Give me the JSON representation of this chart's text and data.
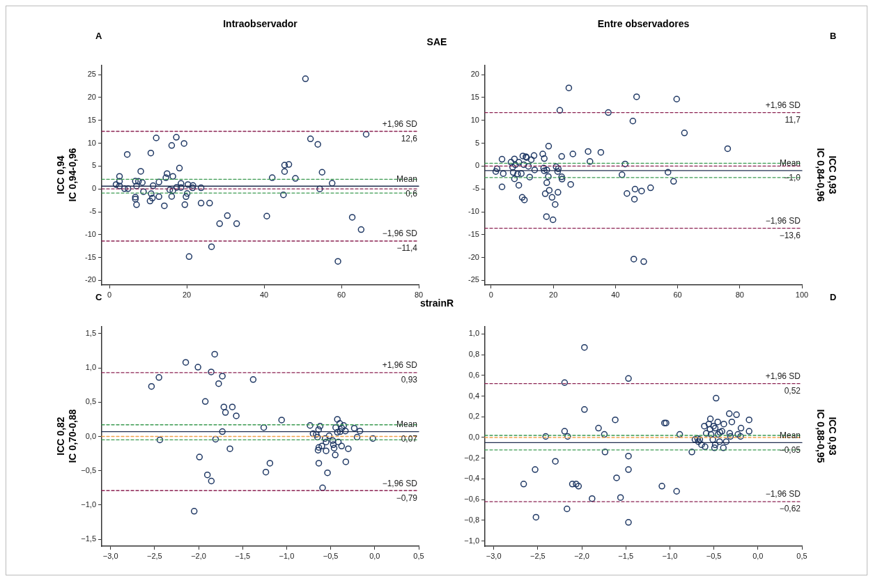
{
  "chart_data": [
    {
      "type": "scatter",
      "title": "Intraobservador",
      "subtitle": "SAE",
      "ylabel": "ICC 0,94\nIC 0,94-0,96",
      "annotations": [
        "A",
        {
          "text": "12,6",
          "x": 80,
          "y": 12.6
        },
        {
          "text": "0,6",
          "x": 80,
          "y": 0.6
        },
        {
          "text": "−11,4",
          "x": 80,
          "y": -11.4
        }
      ],
      "color": "#1f3864",
      "marker": "circle",
      "grid": false,
      "legend": false,
      "x": [
        1.7,
        2.6,
        2.6,
        2.6,
        3.9,
        4.8,
        4.6,
        6.7,
        6.7,
        7.0,
        6.7,
        7.0,
        7.5,
        8.5,
        8.1,
        8.8,
        10.7,
        10.8,
        10.5,
        11.1,
        11.3,
        12.1,
        12.8,
        12.8,
        14.2,
        14.6,
        14.9,
        16.1,
        16.4,
        16.1,
        16.4,
        15.6,
        17.3,
        18.1,
        18.5,
        18.5,
        17.4,
        19.3,
        19.5,
        19.8,
        20.1,
        20.3,
        20.6,
        21.6,
        21.5,
        23.7,
        23.7,
        25.9,
        26.4,
        28.5,
        30.5,
        32.9,
        40.7,
        42.1,
        45.0,
        45.3,
        45.3,
        46.4,
        48.1,
        50.7,
        52.0,
        53.9,
        54.4,
        55.0,
        57.6,
        59.1,
        62.8,
        65.1,
        66.4
      ],
      "values": [
        0.95,
        2.75,
        1.65,
        0.65,
        0.05,
        0.05,
        7.55,
        -1.8,
        -2.2,
        -3.45,
        1.7,
        0.65,
        1.65,
        1.4,
        3.85,
        -0.6,
        7.85,
        -1.05,
        -2.65,
        -2.0,
        0.7,
        11.15,
        1.5,
        -1.7,
        -3.7,
        2.45,
        3.35,
        9.5,
        2.75,
        -1.65,
        -0.35,
        -0.2,
        11.3,
        4.55,
        1.2,
        0.3,
        0.35,
        9.95,
        -3.45,
        -1.7,
        -1.0,
        0.95,
        -14.8,
        0.75,
        0.25,
        0.25,
        -3.1,
        -3.1,
        -12.65,
        -7.6,
        -5.85,
        -7.6,
        -5.95,
        2.45,
        -1.3,
        5.2,
        3.8,
        5.35,
        2.3,
        24.1,
        10.95,
        9.75,
        0,
        3.65,
        1.25,
        -15.85,
        -6.2,
        -8.9,
        11.95
      ],
      "xlim": [
        -2,
        80
      ],
      "ylim": [
        -21,
        27
      ],
      "xticks": [
        0,
        20,
        40,
        60,
        80
      ],
      "yticks": [
        -20,
        -15,
        -10,
        -5,
        0,
        5,
        10,
        15,
        20,
        25
      ],
      "ref_lines": [
        {
          "axis": "y",
          "value": 12.6,
          "label": "+1,96 SD",
          "color": "#8b2252",
          "line_style": "dashed"
        },
        {
          "axis": "y",
          "value": 2.1,
          "color": "#3a9a50",
          "line_style": "dashed"
        },
        {
          "axis": "y",
          "value": 0,
          "color": "#8b2252",
          "line_style": "dashed"
        },
        {
          "axis": "y",
          "value": -0.9,
          "color": "#3a9a50",
          "line_style": "dashed"
        },
        {
          "axis": "y",
          "value": 0.6,
          "label": "Mean",
          "color": "#1f2d4f",
          "line_style": "solid"
        },
        {
          "axis": "y",
          "value": -11.4,
          "label": "−1,96 SD",
          "color": "#8b2252",
          "line_style": "dashed"
        }
      ]
    },
    {
      "type": "scatter",
      "title": "Entre observadores",
      "y2label": "ICC 0,93\nIC 0,84-0,96",
      "annotations": [
        "B",
        {
          "text": "11,7",
          "x": 100,
          "y": 11.7
        },
        {
          "text": "−1,0",
          "x": 100,
          "y": -1.0
        },
        {
          "text": "−13,6",
          "x": 100,
          "y": -13.6
        }
      ],
      "color": "#1f3864",
      "marker": "circle",
      "grid": false,
      "legend": false,
      "x": [
        1.5,
        1.9,
        3.9,
        3.5,
        3.5,
        6.4,
        6.9,
        7.1,
        7.5,
        7.8,
        7.5,
        8.5,
        8.9,
        9.7,
        8.9,
        10.2,
        10.5,
        11.2,
        11.4,
        12.0,
        12.9,
        13.8,
        14.0,
        12.4,
        10.0,
        10.7,
        16.6,
        17.1,
        16.9,
        17.1,
        17.9,
        18.4,
        17.9,
        18.5,
        18.7,
        17.4,
        19.6,
        20.6,
        17.8,
        19.9,
        20.9,
        21.6,
        21.4,
        22.7,
        22.8,
        21.5,
        22.1,
        22.7,
        25.0,
        25.6,
        26.3,
        31.2,
        31.8,
        35.3,
        37.7,
        42.1,
        43.1,
        43.7,
        45.6,
        45.9,
        46.3,
        46.1,
        46.8,
        48.4,
        49.1,
        51.3,
        56.9,
        58.7,
        59.7,
        62.2,
        76.1
      ],
      "values": [
        -1.2,
        -0.6,
        -1.65,
        1.5,
        -4.55,
        0.85,
        -0.25,
        -1.4,
        1.55,
        0.25,
        -2.8,
        -1.75,
        0.85,
        -1.65,
        -4.2,
        2.2,
        0.3,
        2.05,
        1.85,
        -0.05,
        1.4,
        2.3,
        -0.85,
        -2.4,
        -6.85,
        -7.4,
        2.65,
        1.65,
        -0.45,
        -1.05,
        -0.85,
        -2.3,
        -3.65,
        4.35,
        -5.3,
        -6.05,
        -6.85,
        -8.4,
        -11.05,
        -11.75,
        -0.15,
        -0.6,
        -1.2,
        -2.35,
        -2.85,
        -5.75,
        12.2,
        2.1,
        17.1,
        -4.0,
        2.65,
        3.2,
        1.0,
        3.0,
        11.7,
        -1.9,
        0.45,
        -6.0,
        9.85,
        -20.35,
        -5.05,
        -7.25,
        15.15,
        -5.45,
        -20.9,
        -4.75,
        -1.35,
        -3.35,
        14.65,
        7.25,
        3.8
      ],
      "xlim": [
        -2,
        100
      ],
      "ylim": [
        -26,
        22
      ],
      "xticks": [
        0,
        20,
        40,
        60,
        80,
        100
      ],
      "yticks": [
        -25,
        -20,
        -15,
        -10,
        -5,
        0,
        5,
        10,
        15,
        20
      ],
      "ref_lines": [
        {
          "axis": "y",
          "value": 11.7,
          "label": "+1,96 SD",
          "color": "#8b2252",
          "line_style": "dashed"
        },
        {
          "axis": "y",
          "value": 0.6,
          "color": "#3a9a50",
          "line_style": "dashed"
        },
        {
          "axis": "y",
          "value": 0,
          "color": "#8b2252",
          "line_style": "dashed"
        },
        {
          "axis": "y",
          "value": -2.5,
          "color": "#3a9a50",
          "line_style": "dashed"
        },
        {
          "axis": "y",
          "value": -1.0,
          "label": "Mean",
          "color": "#1f2d4f",
          "line_style": "solid"
        },
        {
          "axis": "y",
          "value": -13.6,
          "label": "−1,96 SD",
          "color": "#8b2252",
          "line_style": "dashed"
        }
      ]
    },
    {
      "type": "scatter",
      "subtitle": "strainR",
      "ylabel": "ICC 0,82\nIC 0,70-0,88",
      "annotations": [
        "C",
        {
          "text": "0,93",
          "x": 0.5,
          "y": 0.93
        },
        {
          "text": "0,07",
          "x": 0.5,
          "y": 0.07
        },
        {
          "text": "−0,79",
          "x": 0.5,
          "y": -0.79
        }
      ],
      "color": "#1f3864",
      "marker": "circle",
      "grid": false,
      "legend": false,
      "x": [
        -2.535,
        -2.45,
        -2.44,
        -2.146,
        -2.05,
        -2.007,
        -1.99,
        -1.924,
        -1.9,
        -1.857,
        -1.855,
        -1.817,
        -1.807,
        -1.772,
        -1.73,
        -1.73,
        -1.713,
        -1.695,
        -1.644,
        -1.617,
        -1.572,
        -1.38,
        -1.26,
        -1.236,
        -1.19,
        -1.057,
        -0.734,
        -0.7,
        -0.664,
        -0.65,
        -0.637,
        -0.62,
        -0.643,
        -0.635,
        -0.635,
        -0.6,
        -0.592,
        -0.563,
        -0.552,
        -0.552,
        -0.536,
        -0.517,
        -0.477,
        -0.47,
        -0.461,
        -0.448,
        -0.443,
        -0.424,
        -0.424,
        -0.413,
        -0.397,
        -0.392,
        -0.373,
        -0.352,
        -0.376,
        -0.333,
        -0.328,
        -0.3,
        -0.232,
        -0.2,
        -0.168,
        -0.021
      ],
      "values": [
        0.73,
        0.86,
        -0.05,
        1.08,
        -1.09,
        1.01,
        -0.3,
        0.51,
        -0.56,
        0.94,
        -0.65,
        1.2,
        -0.04,
        0.77,
        0.88,
        0.07,
        0.43,
        0.35,
        -0.18,
        0.43,
        0.3,
        0.83,
        0.13,
        -0.52,
        -0.39,
        0.24,
        0.16,
        0.04,
        0.03,
        -0.01,
        0.1,
        0.15,
        -0.2,
        -0.16,
        -0.39,
        -0.14,
        -0.75,
        -0.03,
        -0.08,
        -0.21,
        -0.53,
        0.01,
        -0.06,
        -0.12,
        -0.17,
        -0.27,
        0.13,
        0.25,
        0.06,
        -0.08,
        0.19,
        0.07,
        0.12,
        0.16,
        -0.14,
        0.08,
        -0.37,
        -0.18,
        0.12,
        -0.01,
        0.08,
        -0.03
      ],
      "xlim": [
        -3.1,
        0.5
      ],
      "ylim": [
        -1.6,
        1.6
      ],
      "xticks": [
        {
          "value": -3,
          "label": "−3,0"
        },
        {
          "value": -2.5,
          "label": "−2,5"
        },
        {
          "value": -2,
          "label": "−2,0"
        },
        {
          "value": -1.5,
          "label": "−1,5"
        },
        {
          "value": -1,
          "label": "−1,0"
        },
        {
          "value": -0.5,
          "label": "−0,5"
        },
        {
          "value": 0,
          "label": "0,0"
        },
        {
          "value": 0.5,
          "label": "0,5"
        }
      ],
      "yticks": [
        {
          "value": -1.5,
          "label": "−1,5"
        },
        {
          "value": -1,
          "label": "−1,0"
        },
        {
          "value": -0.5,
          "label": "−0,5"
        },
        {
          "value": 0,
          "label": "0,0"
        },
        {
          "value": 0.5,
          "label": "0,5"
        },
        {
          "value": 1,
          "label": "1,0"
        },
        {
          "value": 1.5,
          "label": "1,5"
        }
      ],
      "ref_lines": [
        {
          "axis": "y",
          "value": 0.93,
          "label": "+1,96 SD",
          "color": "#8b2252",
          "line_style": "dashed"
        },
        {
          "axis": "y",
          "value": 0.17,
          "color": "#3a9a50",
          "line_style": "dashed"
        },
        {
          "axis": "y",
          "value": 0,
          "color": "#f0a04b",
          "line_style": "dashed"
        },
        {
          "axis": "y",
          "value": -0.05,
          "color": "#3a9a50",
          "line_style": "dashed"
        },
        {
          "axis": "y",
          "value": 0.07,
          "label": "Mean",
          "color": "#1f2d4f",
          "line_style": "solid"
        },
        {
          "axis": "y",
          "value": -0.79,
          "label": "−1,96 SD",
          "color": "#8b2252",
          "line_style": "dashed"
        }
      ]
    },
    {
      "type": "scatter",
      "y2label": "ICC 0,93\nIC 0,88-0,95",
      "annotations": [
        "D",
        {
          "text": "0,52",
          "x": 0.5,
          "y": 0.52
        },
        {
          "text": "−0,05",
          "x": 0.5,
          "y": -0.05
        },
        {
          "text": "−0,62",
          "x": 0.5,
          "y": -0.62
        }
      ],
      "color": "#1f3864",
      "marker": "circle",
      "grid": false,
      "legend": false,
      "x": [
        -2.66,
        -2.53,
        -2.52,
        -2.41,
        -2.3,
        -2.195,
        -2.195,
        -2.168,
        -2.16,
        -2.107,
        -2.064,
        -2.037,
        -1.97,
        -1.97,
        -1.883,
        -1.81,
        -1.744,
        -1.736,
        -1.62,
        -1.605,
        -1.56,
        -1.47,
        -1.47,
        -1.47,
        -1.47,
        -1.09,
        -1.061,
        -1.043,
        -0.923,
        -0.888,
        -0.75,
        -0.715,
        -0.685,
        -0.677,
        -0.66,
        -0.64,
        -0.608,
        -0.6,
        -0.587,
        -0.557,
        -0.54,
        -0.544,
        -0.533,
        -0.512,
        -0.504,
        -0.493,
        -0.485,
        -0.485,
        -0.475,
        -0.456,
        -0.453,
        -0.432,
        -0.435,
        -0.408,
        -0.387,
        -0.392,
        -0.36,
        -0.325,
        -0.32,
        -0.296,
        -0.312,
        -0.243,
        -0.227,
        -0.197,
        -0.192,
        -0.1,
        -0.1
      ],
      "values": [
        -0.45,
        -0.31,
        -0.77,
        0.01,
        -0.23,
        0.53,
        0.06,
        -0.69,
        0.01,
        -0.45,
        -0.45,
        -0.47,
        0.87,
        0.27,
        -0.59,
        0.09,
        0.03,
        -0.14,
        0.17,
        -0.39,
        -0.58,
        0.57,
        -0.18,
        -0.31,
        -0.82,
        -0.47,
        0.14,
        0.14,
        -0.52,
        0.03,
        -0.14,
        -0.02,
        -0.01,
        -0.04,
        -0.02,
        -0.07,
        0.11,
        -0.09,
        0.04,
        0.13,
        0.18,
        0.08,
        0.03,
        -0.02,
        0.11,
        -0.1,
        0.09,
        -0.07,
        0.38,
        0.15,
        0.03,
        0.05,
        -0.04,
        0.06,
        0.13,
        -0.1,
        -0.04,
        0.23,
        0.04,
        0.15,
        0.01,
        0.22,
        0.03,
        0.01,
        0.09,
        0.17,
        0.06
      ],
      "xlim": [
        -3.1,
        0.5
      ],
      "ylim": [
        -1.05,
        1.07
      ],
      "xticks": [
        {
          "value": -3,
          "label": "−3,0"
        },
        {
          "value": -2.5,
          "label": "−2,5"
        },
        {
          "value": -2,
          "label": "−2,0"
        },
        {
          "value": -1.5,
          "label": "−1,5"
        },
        {
          "value": -1,
          "label": "−1,0"
        },
        {
          "value": -0.5,
          "label": "−0,5"
        },
        {
          "value": 0,
          "label": "0,0"
        },
        {
          "value": 0.5,
          "label": "0,5"
        }
      ],
      "yticks": [
        {
          "value": -1,
          "label": "−1,0"
        },
        {
          "value": -0.8,
          "label": "−0,8"
        },
        {
          "value": -0.6,
          "label": "−0,6"
        },
        {
          "value": -0.4,
          "label": "−0,4"
        },
        {
          "value": -0.2,
          "label": "−0,2"
        },
        {
          "value": 0,
          "label": "0,0"
        },
        {
          "value": 0.2,
          "label": "0,2"
        },
        {
          "value": 0.4,
          "label": "0,4"
        },
        {
          "value": 0.6,
          "label": "0,6"
        },
        {
          "value": 0.8,
          "label": "0,8"
        },
        {
          "value": 1,
          "label": "1,0"
        }
      ],
      "ref_lines": [
        {
          "axis": "y",
          "value": 0.52,
          "label": "+1,96 SD",
          "color": "#8b2252",
          "line_style": "dashed"
        },
        {
          "axis": "y",
          "value": 0.02,
          "color": "#3a9a50",
          "line_style": "dashed"
        },
        {
          "axis": "y",
          "value": 0,
          "color": "#f0a04b",
          "line_style": "dashed"
        },
        {
          "axis": "y",
          "value": -0.12,
          "color": "#3a9a50",
          "line_style": "dashed"
        },
        {
          "axis": "y",
          "value": -0.05,
          "label": "Mean",
          "color": "#1f2d4f",
          "line_style": "solid"
        },
        {
          "axis": "y",
          "value": -0.62,
          "label": "−1,96 SD",
          "color": "#8b2252",
          "line_style": "dashed"
        }
      ]
    }
  ]
}
